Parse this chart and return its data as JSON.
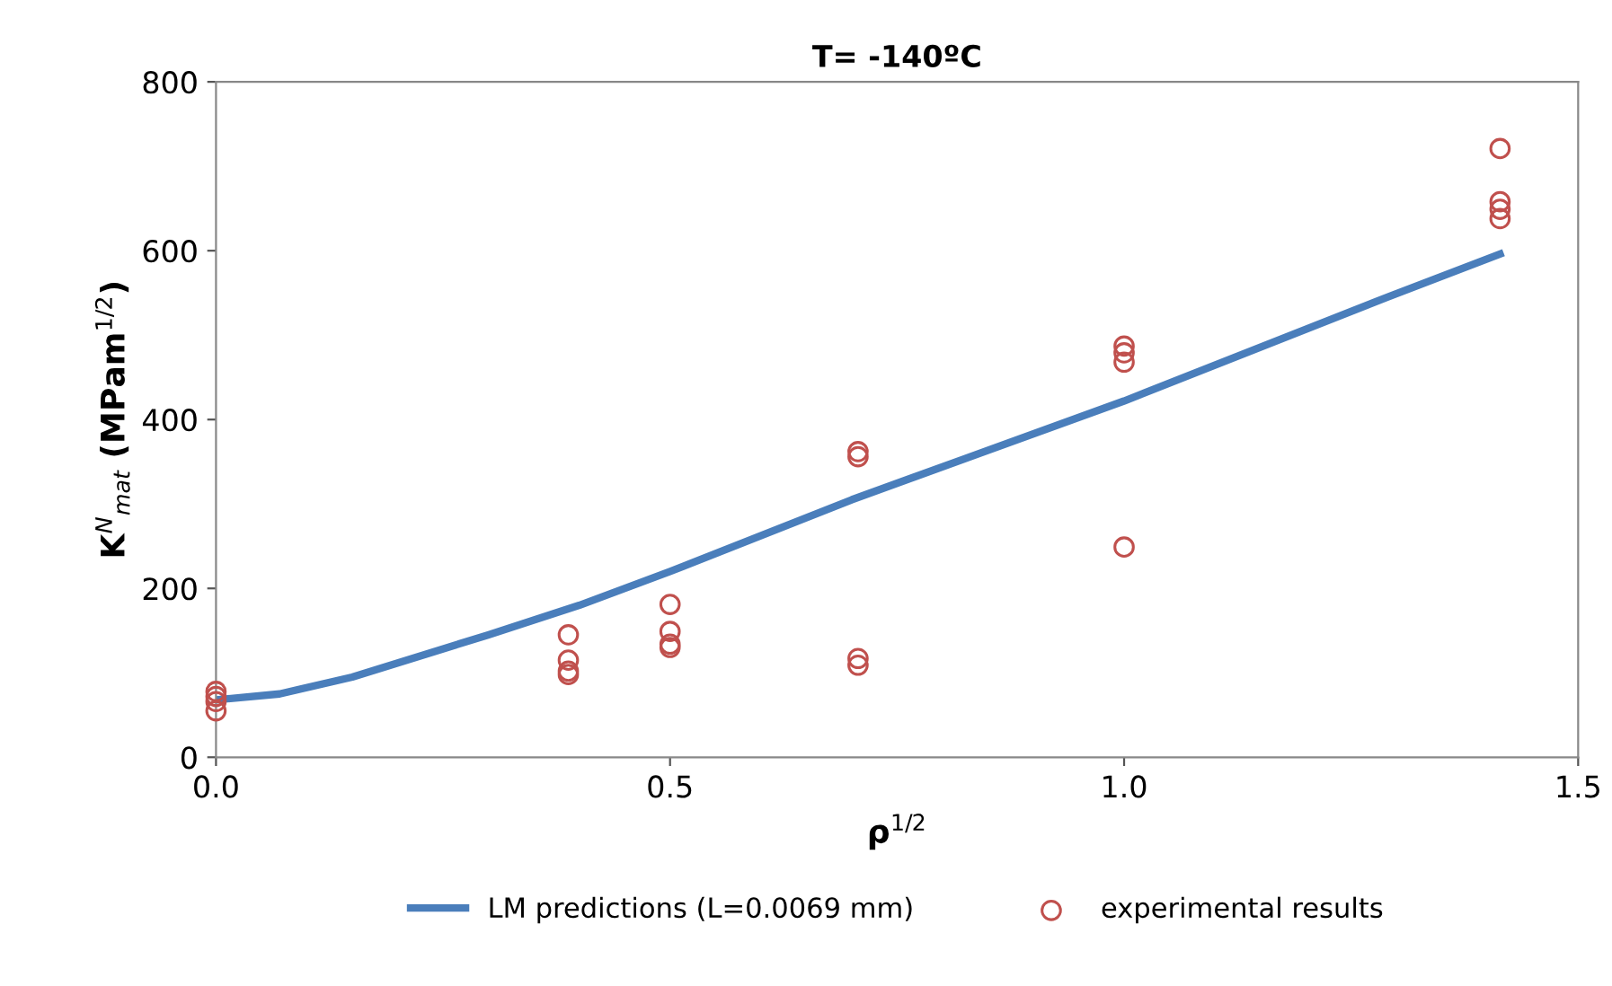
{
  "chart_data": {
    "type": "scatter",
    "title": "T= -140ºC",
    "xlabel": "ρ$^{1/2}$",
    "ylabel": "K$^{N}$$_{mat}$ (MPam$^{1/2}$)",
    "xlim": [
      0,
      1.5
    ],
    "xticks": [
      {
        "value": 0,
        "label": "0.0"
      },
      0.5,
      {
        "value": 1,
        "label": "1.0"
      },
      1.5
    ],
    "ylim": [
      0,
      800
    ],
    "yticks": [
      0,
      200,
      400,
      600,
      800
    ],
    "grid": false,
    "legend": "bottom",
    "series": [
      {
        "name": "LM predictions (L=0.0069 mm)",
        "type": "line",
        "color": "#4a7ebb",
        "marker": "none",
        "line_style": "solid",
        "x": [
          0,
          0.07,
          0.15,
          0.3,
          0.4,
          0.5,
          0.7,
          1.0,
          1.29,
          1.414
        ],
        "values": [
          68,
          75,
          95,
          145,
          180,
          220,
          305,
          422,
          545,
          596
        ]
      },
      {
        "name": "experimental results",
        "color": "#c0504d",
        "marker": "circle",
        "x": [
          0,
          0,
          0,
          0,
          0.388,
          0.388,
          0.388,
          0.388,
          0.5,
          0.5,
          0.5,
          0.5,
          0.707,
          0.707,
          0.707,
          0.707,
          1.0,
          1.0,
          1.0,
          1.0,
          1.414,
          1.414,
          1.414,
          1.414
        ],
        "values": [
          78,
          72,
          66,
          55,
          145,
          115,
          102,
          98,
          181,
          149,
          134,
          130,
          362,
          356,
          117,
          109,
          487,
          479,
          468,
          249,
          721,
          658,
          649,
          638
        ]
      }
    ]
  }
}
